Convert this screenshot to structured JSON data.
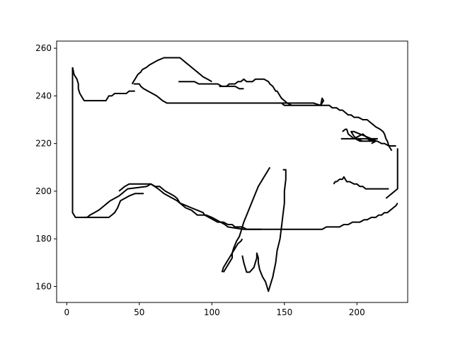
{
  "chart_data": {
    "type": "line",
    "title": "",
    "xlabel": "",
    "ylabel": "",
    "xlim": [
      -7,
      235
    ],
    "ylim": [
      153.3,
      263
    ],
    "xticks": [
      0,
      50,
      100,
      150,
      200
    ],
    "yticks": [
      160,
      180,
      200,
      220,
      240,
      260
    ],
    "xtick_labels": [
      "0",
      "50",
      "100",
      "150",
      "200"
    ],
    "ytick_labels": [
      "160",
      "180",
      "200",
      "220",
      "240",
      "260"
    ],
    "grid": false,
    "line_color": "#000000",
    "series": [
      {
        "x": [
          4,
          4,
          6,
          8,
          20,
          29,
          31,
          33,
          35,
          37,
          43,
          47,
          53
        ],
        "y": [
          252,
          191,
          189,
          189,
          189,
          189,
          190,
          191,
          193,
          196,
          198,
          199,
          199
        ]
      },
      {
        "x": [
          4,
          5,
          7,
          8,
          8,
          9,
          12,
          27,
          29,
          31,
          33,
          41,
          43,
          47
        ],
        "y": [
          252,
          249,
          247,
          245,
          243,
          241,
          238,
          238,
          240,
          240,
          241,
          241,
          242,
          242
        ]
      },
      {
        "x": [
          12,
          14,
          16,
          19,
          22,
          24,
          26,
          28,
          30,
          33,
          36,
          38,
          40,
          42,
          55,
          58,
          63,
          65,
          67,
          70,
          73,
          76,
          78,
          80,
          82,
          86,
          88,
          90,
          94,
          96,
          100,
          103,
          106,
          109,
          111,
          122,
          150,
          176,
          179,
          181,
          183,
          185,
          188,
          191,
          194,
          197,
          199,
          202,
          205,
          207,
          210,
          213,
          215,
          217,
          219,
          221,
          223,
          225,
          227,
          228
        ],
        "y": [
          189,
          189,
          190,
          191,
          192,
          193,
          194,
          195,
          196,
          197,
          198,
          199,
          200,
          201,
          202,
          203,
          201,
          200,
          199,
          198,
          197,
          196,
          195,
          194,
          193,
          192,
          191,
          190,
          190,
          190,
          189,
          188,
          187,
          186,
          185,
          184,
          184,
          184,
          185,
          185,
          185,
          185,
          185,
          186,
          186,
          187,
          187,
          187,
          188,
          188,
          189,
          189,
          190,
          190,
          191,
          191,
          192,
          193,
          194,
          195
        ]
      },
      {
        "x": [
          36,
          40,
          43,
          47,
          50,
          58,
          61,
          64,
          66,
          68,
          71,
          74,
          76,
          77,
          78,
          82,
          86,
          90,
          94,
          95,
          98,
          101,
          104,
          108,
          111,
          114,
          116,
          118,
          121,
          124,
          128,
          130,
          133,
          134
        ],
        "y": [
          200,
          202,
          203,
          203,
          203,
          203,
          202,
          202,
          201,
          200,
          199,
          198,
          197,
          196,
          195,
          194,
          193,
          192,
          191,
          190,
          189,
          188,
          187,
          187,
          186,
          186,
          185,
          185,
          185,
          184,
          184,
          184,
          184,
          184
        ]
      },
      {
        "x": [
          45,
          47,
          48,
          49,
          51,
          52,
          55,
          57,
          60,
          63,
          67,
          69,
          71,
          73,
          76,
          78,
          80,
          82,
          84,
          86,
          88,
          90,
          92,
          94,
          97,
          100
        ],
        "y": [
          245,
          247,
          248,
          249,
          250,
          251,
          252,
          253,
          254,
          255,
          256,
          256,
          256,
          256,
          256,
          256,
          255,
          254,
          253,
          252,
          251,
          250,
          249,
          248,
          247,
          246
        ]
      },
      {
        "x": [
          46,
          50,
          51,
          53,
          56,
          59,
          62,
          64,
          66,
          69,
          72,
          74,
          76,
          78,
          79,
          85,
          95,
          105,
          115,
          125,
          135,
          145,
          148,
          150,
          152,
          155,
          158,
          161,
          163,
          166,
          169,
          172,
          175,
          177,
          179,
          181,
          183,
          186,
          188,
          190,
          192,
          194,
          196,
          198,
          201,
          204,
          207,
          209,
          211,
          213,
          216,
          218,
          219,
          220,
          221,
          222,
          223,
          224
        ],
        "y": [
          245,
          245,
          244,
          243,
          242,
          241,
          240,
          239,
          238,
          237,
          237,
          237,
          237,
          237,
          237,
          237,
          237,
          237,
          237,
          237,
          237,
          237,
          237,
          236,
          236,
          236,
          236,
          236,
          236,
          236,
          236,
          236,
          236,
          236,
          236,
          236,
          235,
          235,
          234,
          234,
          233,
          232,
          232,
          231,
          231,
          230,
          230,
          229,
          228,
          227,
          226,
          225,
          224,
          222,
          221,
          219,
          218,
          217
        ]
      },
      {
        "x": [
          77,
          88,
          91,
          96,
          99,
          104,
          107,
          109,
          112,
          114,
          116,
          119,
          122
        ],
        "y": [
          246,
          246,
          245,
          245,
          245,
          245,
          244,
          244,
          244,
          244,
          244,
          243,
          243
        ]
      },
      {
        "x": [
          105,
          110,
          112,
          116,
          118,
          120,
          122,
          124,
          126,
          128,
          130,
          134,
          136,
          139,
          140,
          142,
          143,
          144,
          145,
          146,
          147,
          148,
          150,
          152,
          155
        ],
        "y": [
          244,
          244,
          245,
          245,
          246,
          246,
          247,
          246,
          246,
          246,
          247,
          247,
          247,
          246,
          245,
          244,
          243,
          242,
          242,
          241,
          240,
          239,
          238,
          237,
          236
        ]
      },
      {
        "x": [
          145,
          150,
          160,
          170,
          175,
          177,
          176,
          175
        ],
        "y": [
          237,
          237,
          237,
          237,
          236,
          238,
          239,
          236
        ]
      },
      {
        "x": [
          107,
          108,
          110,
          112,
          114,
          116,
          118,
          120,
          121
        ],
        "y": [
          166,
          168,
          170,
          172,
          174,
          176,
          178,
          179,
          180
        ]
      },
      {
        "x": [
          140,
          138,
          136,
          134,
          132,
          130,
          128,
          126,
          124,
          122,
          121,
          120,
          119,
          117,
          115,
          114,
          114,
          113,
          111,
          109,
          108,
          108
        ],
        "y": [
          210,
          208,
          206,
          204,
          202,
          199,
          196,
          193,
          190,
          187,
          185,
          183,
          181,
          179,
          176,
          174,
          172,
          171,
          169,
          167,
          166,
          166
        ]
      },
      {
        "x": [
          121,
          122,
          123,
          124,
          126,
          129,
          131,
          131,
          132,
          132,
          133,
          135,
          137,
          138,
          139,
          140,
          141,
          142,
          143,
          144,
          145,
          147,
          148,
          149,
          150,
          150,
          151,
          151,
          150,
          149
        ],
        "y": [
          173,
          170,
          168,
          166,
          166,
          168,
          172,
          174,
          172,
          170,
          167,
          164,
          162,
          160,
          158,
          160,
          162,
          164,
          167,
          170,
          175,
          180,
          185,
          190,
          195,
          200,
          205,
          209,
          209,
          209
        ]
      },
      {
        "x": [
          184,
          185,
          186,
          188,
          190,
          191,
          193,
          195,
          198,
          200,
          202,
          204,
          206,
          210,
          215,
          222
        ],
        "y": [
          203,
          204,
          204,
          205,
          205,
          206,
          204,
          204,
          203,
          203,
          202,
          202,
          201,
          201,
          201,
          201
        ]
      },
      {
        "x": [
          228,
          228,
          226,
          224,
          222,
          220
        ],
        "y": [
          218,
          201,
          200,
          199,
          198,
          197
        ]
      },
      {
        "x": [
          190,
          192,
          193,
          194,
          196,
          198,
          201,
          204,
          206,
          208,
          209,
          211,
          212,
          214,
          217,
          219,
          222,
          224,
          225,
          227
        ],
        "y": [
          225,
          226,
          226,
          224,
          223,
          222,
          223,
          224,
          223,
          222,
          221,
          222,
          221,
          221,
          220,
          220,
          219,
          219,
          219,
          219
        ]
      },
      {
        "x": [
          189,
          195,
          200,
          203,
          206,
          209,
          212,
          214,
          208,
          204,
          200,
          198,
          196,
          198,
          202,
          206,
          210,
          213,
          210,
          206,
          202,
          199,
          203,
          207,
          211,
          213,
          210
        ],
        "y": [
          222,
          222,
          222,
          222,
          222,
          222,
          222,
          222,
          221,
          221,
          222,
          223,
          225,
          225,
          224,
          223,
          222,
          221,
          221,
          221,
          221,
          222,
          222,
          222,
          221,
          221,
          220
        ]
      }
    ]
  }
}
